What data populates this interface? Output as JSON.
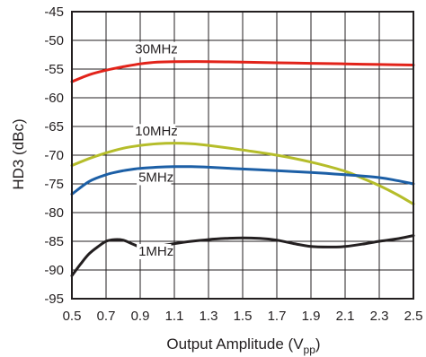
{
  "chart_data": {
    "type": "line",
    "title": "",
    "xlabel": "Output Amplitude (V",
    "xlabel_sub": "pp",
    "xlabel_close": ")",
    "ylabel": "HD3 (dBc)",
    "xlim": [
      0.5,
      2.5
    ],
    "ylim": [
      -95,
      -45
    ],
    "x_ticks": [
      "0.5",
      "0.7",
      "0.9",
      "1.1",
      "1.3",
      "1.5",
      "1.7",
      "1.9",
      "2.1",
      "2.3",
      "2.5"
    ],
    "y_ticks": [
      "-45",
      "-50",
      "-55",
      "-60",
      "-65",
      "-70",
      "-75",
      "-80",
      "-85",
      "-90",
      "-95"
    ],
    "grid": true,
    "series": [
      {
        "name": "30MHz",
        "color": "#e2231a",
        "x": [
          0.5,
          0.6,
          0.7,
          0.8,
          0.9,
          1.0,
          1.1,
          1.3,
          1.5,
          1.7,
          1.9,
          2.1,
          2.3,
          2.5
        ],
        "y": [
          -57.2,
          -56.0,
          -55.2,
          -54.6,
          -54.1,
          -53.8,
          -53.7,
          -53.7,
          -53.8,
          -53.9,
          -54.0,
          -54.1,
          -54.2,
          -54.3
        ]
      },
      {
        "name": "10MHz",
        "color": "#b5bd2a",
        "x": [
          0.5,
          0.6,
          0.7,
          0.8,
          0.9,
          1.0,
          1.1,
          1.2,
          1.3,
          1.5,
          1.7,
          1.9,
          2.1,
          2.2,
          2.3,
          2.4,
          2.5
        ],
        "y": [
          -71.8,
          -70.6,
          -69.6,
          -68.8,
          -68.3,
          -68.0,
          -67.9,
          -68.0,
          -68.3,
          -69.1,
          -70.0,
          -71.2,
          -72.8,
          -74.0,
          -75.3,
          -76.8,
          -78.5
        ]
      },
      {
        "name": "5MHz",
        "color": "#1c5fa6",
        "x": [
          0.5,
          0.6,
          0.7,
          0.8,
          0.9,
          1.0,
          1.1,
          1.2,
          1.3,
          1.5,
          1.7,
          1.9,
          2.1,
          2.3,
          2.4,
          2.5
        ],
        "y": [
          -76.8,
          -74.6,
          -73.4,
          -72.7,
          -72.3,
          -72.1,
          -72.0,
          -72.0,
          -72.1,
          -72.4,
          -72.7,
          -73.0,
          -73.4,
          -73.9,
          -74.4,
          -75.0
        ]
      },
      {
        "name": "1MHz",
        "color": "#231f20",
        "x": [
          0.5,
          0.55,
          0.6,
          0.65,
          0.7,
          0.75,
          0.8,
          0.85,
          0.9,
          0.95,
          1.0,
          1.1,
          1.2,
          1.3,
          1.4,
          1.5,
          1.6,
          1.7,
          1.8,
          1.9,
          2.0,
          2.1,
          2.2,
          2.3,
          2.4,
          2.5
        ],
        "y": [
          -91.0,
          -89.0,
          -87.2,
          -86.0,
          -85.0,
          -84.7,
          -84.8,
          -85.4,
          -86.0,
          -86.1,
          -85.9,
          -85.4,
          -85.0,
          -84.7,
          -84.5,
          -84.4,
          -84.5,
          -84.8,
          -85.4,
          -85.9,
          -86.0,
          -85.9,
          -85.5,
          -85.0,
          -84.6,
          -84.0
        ]
      }
    ],
    "annotations": [
      {
        "text": "30MHz",
        "x": 0.87,
        "y": -52.3
      },
      {
        "text": "10MHz",
        "x": 0.87,
        "y": -66.6
      },
      {
        "text": "5MHz",
        "x": 0.89,
        "y": -74.6
      },
      {
        "text": "1MHz",
        "x": 0.89,
        "y": -87.5
      }
    ]
  }
}
